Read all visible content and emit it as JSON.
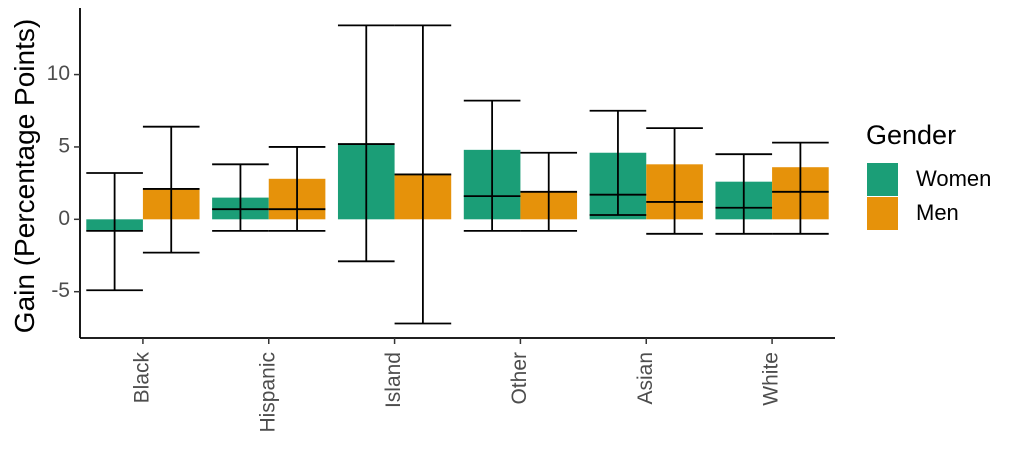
{
  "chart_data": {
    "type": "bar",
    "title": "",
    "xlabel": "",
    "ylabel": "Gain (Percentage Points)",
    "ylim": [
      -8.2,
      14.6
    ],
    "yticks": [
      -5,
      0,
      5,
      10
    ],
    "grid": false,
    "legend_position": "right",
    "categories": [
      "Black",
      "Hispanic",
      "Island",
      "Other",
      "Asian",
      "White"
    ],
    "legend": {
      "title": "Gender"
    },
    "series": [
      {
        "name": "Women",
        "color": "#1b9e77",
        "values": [
          -0.8,
          1.5,
          5.2,
          4.8,
          4.6,
          2.6
        ],
        "median": [
          -0.8,
          0.7,
          5.2,
          1.6,
          1.7,
          0.8
        ],
        "error_low": [
          -4.9,
          -0.8,
          -2.9,
          -0.8,
          0.3,
          -1.0
        ],
        "error_high": [
          3.2,
          3.8,
          13.4,
          8.2,
          7.5,
          4.5
        ]
      },
      {
        "name": "Men",
        "color": "#e6920a",
        "values": [
          2.1,
          2.8,
          3.1,
          1.9,
          3.8,
          3.6
        ],
        "median": [
          2.1,
          0.7,
          3.1,
          1.9,
          1.2,
          1.9
        ],
        "error_low": [
          -2.3,
          -0.8,
          -7.2,
          -0.8,
          -1.0,
          -1.0
        ],
        "error_high": [
          6.4,
          5.0,
          13.4,
          4.6,
          6.3,
          5.3
        ]
      }
    ]
  }
}
